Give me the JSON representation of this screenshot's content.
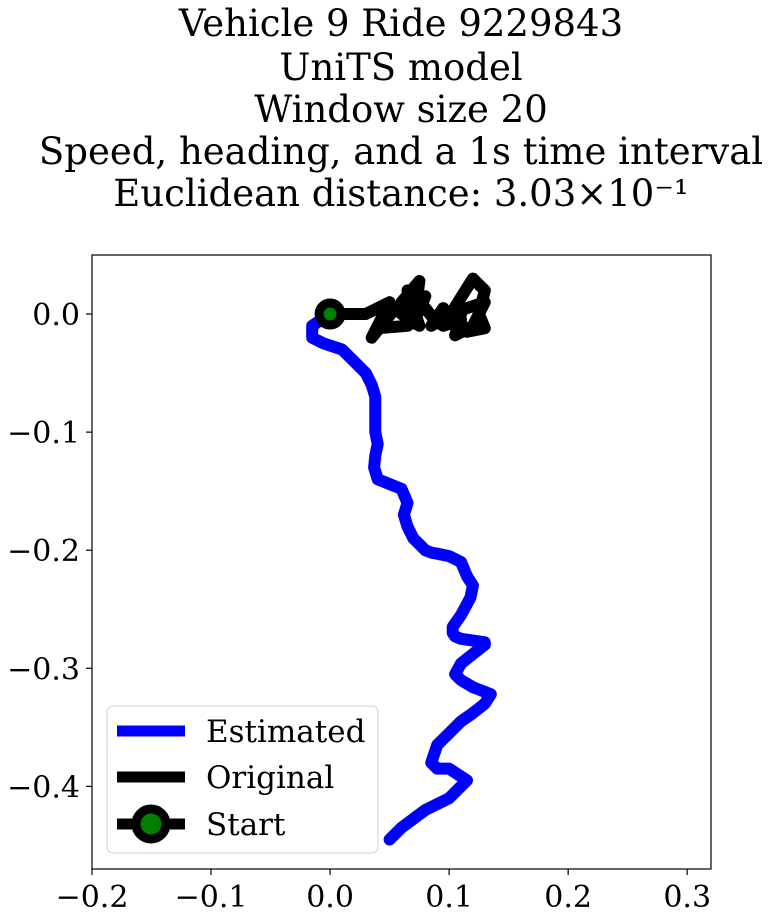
{
  "chart_data": {
    "type": "line",
    "title_lines": [
      "Vehicle 9 Ride 9229843",
      "UniTS model",
      "Window size 20",
      "Speed, heading, and a 1s time interval",
      "Euclidean distance: 3.03×10⁻¹"
    ],
    "xlim": [
      -0.2,
      0.32
    ],
    "ylim": [
      -0.47,
      0.05
    ],
    "xticks": [
      "−0.2",
      "−0.1",
      "0.0",
      "0.1",
      "0.2",
      "0.3"
    ],
    "xtick_values": [
      -0.2,
      -0.1,
      0.0,
      0.1,
      0.2,
      0.3
    ],
    "yticks": [
      "0.0",
      "−0.1",
      "−0.2",
      "−0.3",
      "−0.4"
    ],
    "ytick_values": [
      0.0,
      -0.1,
      -0.2,
      -0.3,
      -0.4
    ],
    "legend": {
      "placement": "lower-left",
      "entries": [
        "Estimated",
        "Original",
        "Start"
      ]
    },
    "series": [
      {
        "name": "Estimated",
        "color": "#0000ff",
        "x": [
          0.0,
          -0.015,
          -0.015,
          -0.005,
          0.01,
          0.02,
          0.03,
          0.035,
          0.038,
          0.038,
          0.038,
          0.04,
          0.038,
          0.037,
          0.04,
          0.045,
          0.06,
          0.065,
          0.062,
          0.065,
          0.07,
          0.075,
          0.08,
          0.085,
          0.09,
          0.1,
          0.11,
          0.115,
          0.12,
          0.118,
          0.11,
          0.103,
          0.103,
          0.105,
          0.11,
          0.13,
          0.13,
          0.12,
          0.11,
          0.105,
          0.11,
          0.12,
          0.135,
          0.13,
          0.12,
          0.11,
          0.1,
          0.09,
          0.085,
          0.09,
          0.1,
          0.115,
          0.1,
          0.08,
          0.06,
          0.05
        ],
        "y": [
          0.0,
          -0.01,
          -0.02,
          -0.025,
          -0.03,
          -0.04,
          -0.05,
          -0.06,
          -0.07,
          -0.08,
          -0.1,
          -0.11,
          -0.12,
          -0.13,
          -0.14,
          -0.142,
          -0.148,
          -0.16,
          -0.17,
          -0.18,
          -0.19,
          -0.195,
          -0.2,
          -0.202,
          -0.203,
          -0.205,
          -0.21,
          -0.222,
          -0.23,
          -0.24,
          -0.255,
          -0.265,
          -0.27,
          -0.273,
          -0.275,
          -0.278,
          -0.28,
          -0.288,
          -0.296,
          -0.305,
          -0.31,
          -0.316,
          -0.322,
          -0.33,
          -0.338,
          -0.345,
          -0.355,
          -0.365,
          -0.38,
          -0.385,
          -0.385,
          -0.395,
          -0.41,
          -0.42,
          -0.435,
          -0.445
        ]
      },
      {
        "name": "Original",
        "color": "#000000",
        "x": [
          0.0,
          0.03,
          0.05,
          0.035,
          0.055,
          0.04,
          0.065,
          0.06,
          0.075,
          0.07,
          0.08,
          0.06,
          0.075,
          0.065,
          0.08,
          0.09,
          0.095,
          0.085,
          0.1,
          0.11,
          0.095,
          0.12,
          0.13,
          0.125,
          0.13,
          0.115,
          0.1,
          0.13,
          0.12,
          0.105,
          0.11
        ],
        "y": [
          0.0,
          0.0,
          0.01,
          -0.02,
          0.005,
          -0.012,
          -0.01,
          0.01,
          0.028,
          -0.008,
          0.015,
          0.0,
          -0.01,
          0.02,
          0.005,
          -0.008,
          0.005,
          -0.01,
          0.0,
          -0.005,
          -0.01,
          0.03,
          0.02,
          0.0,
          -0.012,
          -0.015,
          0.0,
          0.01,
          -0.01,
          -0.018,
          0.0
        ]
      }
    ],
    "start_point": {
      "name": "Start",
      "x": 0.0,
      "y": 0.0,
      "marker_color": "#008000",
      "edge_color": "#000000"
    }
  }
}
